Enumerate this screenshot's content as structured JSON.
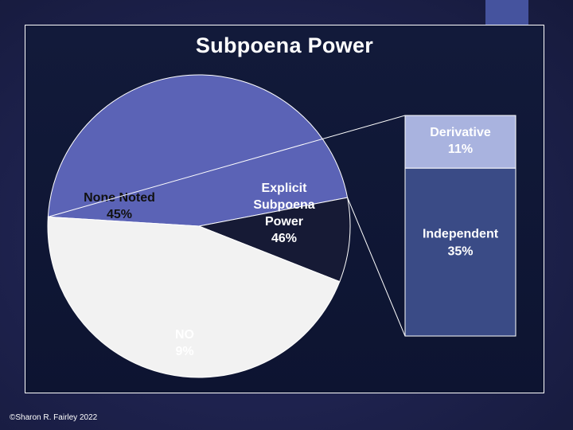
{
  "chart_data": {
    "type": "pie",
    "title": "Subpoena Power",
    "slices": [
      {
        "label": "Explicit Subpoena Power",
        "display_label": [
          "Explicit",
          "Subpoena",
          "Power"
        ],
        "value": 46,
        "value_label": "46%",
        "color": "#5b63b6",
        "text_color": "#ffffff"
      },
      {
        "label": "NO",
        "display_label": [
          "NO"
        ],
        "value": 9,
        "value_label": "9%",
        "color": "#161a35",
        "text_color": "#ffffff"
      },
      {
        "label": "None Noted",
        "display_label": [
          "None Noted"
        ],
        "value": 45,
        "value_label": "45%",
        "color": "#f2f2f2",
        "text_color": "#111111"
      }
    ],
    "breakdown_of": "Explicit Subpoena Power",
    "breakdown": [
      {
        "label": "Derivative",
        "value": 11,
        "value_label": "11%",
        "color": "#a9b3df",
        "text_color": "#ffffff"
      },
      {
        "label": "Independent",
        "value": 35,
        "value_label": "35%",
        "color": "#3a4b86",
        "text_color": "#ffffff"
      }
    ]
  },
  "footer": "©Sharon R. Fairley 2022"
}
